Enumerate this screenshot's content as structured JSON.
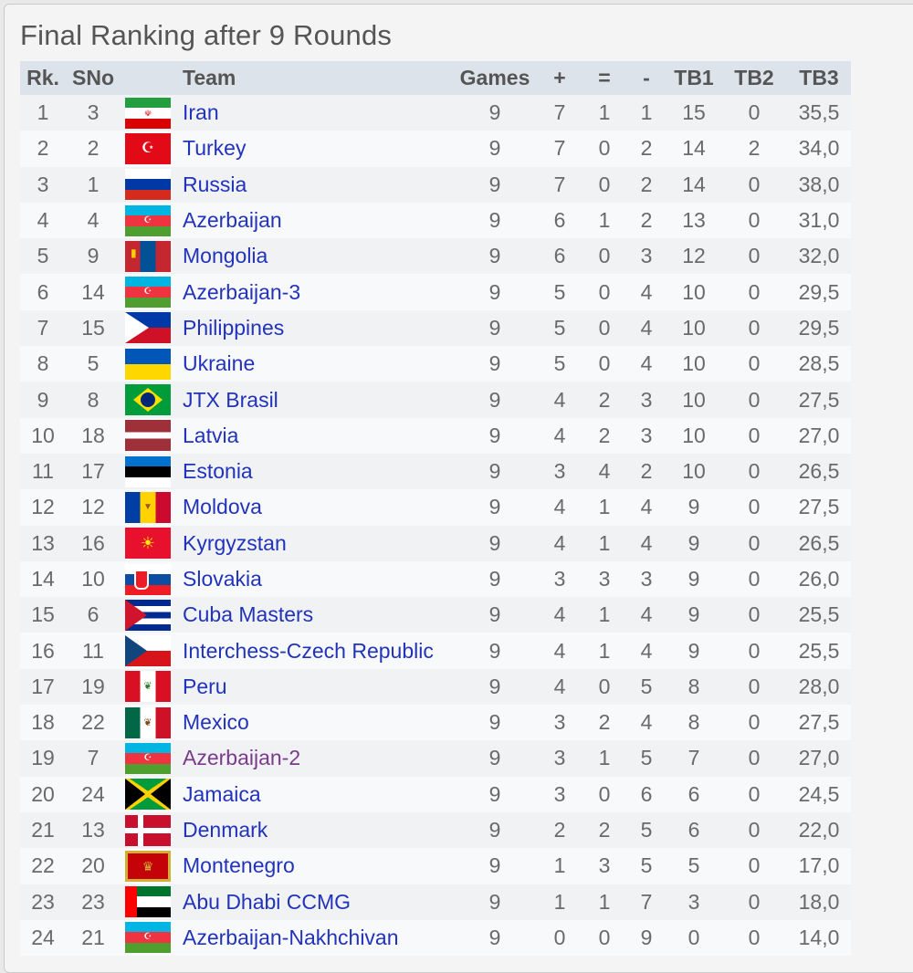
{
  "title": "Final Ranking after 9 Rounds",
  "headers": {
    "rk": "Rk.",
    "sno": "SNo",
    "flag": "",
    "team": "Team",
    "games": "Games",
    "plus": "+",
    "eq": "=",
    "minus": "-",
    "tb1": "TB1",
    "tb2": "TB2",
    "tb3": "TB3"
  },
  "rows": [
    {
      "rk": "1",
      "sno": "3",
      "team": "Iran",
      "games": "9",
      "plus": "7",
      "eq": "1",
      "minus": "1",
      "tb1": "15",
      "tb2": "0",
      "tb3": "35,5",
      "flag": "iran-flag"
    },
    {
      "rk": "2",
      "sno": "2",
      "team": "Turkey",
      "games": "9",
      "plus": "7",
      "eq": "0",
      "minus": "2",
      "tb1": "14",
      "tb2": "2",
      "tb3": "34,0",
      "flag": "turkey-flag"
    },
    {
      "rk": "3",
      "sno": "1",
      "team": "Russia",
      "games": "9",
      "plus": "7",
      "eq": "0",
      "minus": "2",
      "tb1": "14",
      "tb2": "0",
      "tb3": "38,0",
      "flag": "russia-flag"
    },
    {
      "rk": "4",
      "sno": "4",
      "team": "Azerbaijan",
      "games": "9",
      "plus": "6",
      "eq": "1",
      "minus": "2",
      "tb1": "13",
      "tb2": "0",
      "tb3": "31,0",
      "flag": "azerbaijan-flag"
    },
    {
      "rk": "5",
      "sno": "9",
      "team": "Mongolia",
      "games": "9",
      "plus": "6",
      "eq": "0",
      "minus": "3",
      "tb1": "12",
      "tb2": "0",
      "tb3": "32,0",
      "flag": "mongolia-flag"
    },
    {
      "rk": "6",
      "sno": "14",
      "team": "Azerbaijan-3",
      "games": "9",
      "plus": "5",
      "eq": "0",
      "minus": "4",
      "tb1": "10",
      "tb2": "0",
      "tb3": "29,5",
      "flag": "azerbaijan-flag"
    },
    {
      "rk": "7",
      "sno": "15",
      "team": "Philippines",
      "games": "9",
      "plus": "5",
      "eq": "0",
      "minus": "4",
      "tb1": "10",
      "tb2": "0",
      "tb3": "29,5",
      "flag": "philippines-flag"
    },
    {
      "rk": "8",
      "sno": "5",
      "team": "Ukraine",
      "games": "9",
      "plus": "5",
      "eq": "0",
      "minus": "4",
      "tb1": "10",
      "tb2": "0",
      "tb3": "28,5",
      "flag": "ukraine-flag"
    },
    {
      "rk": "9",
      "sno": "8",
      "team": "JTX Brasil",
      "games": "9",
      "plus": "4",
      "eq": "2",
      "minus": "3",
      "tb1": "10",
      "tb2": "0",
      "tb3": "27,5",
      "flag": "brazil-flag"
    },
    {
      "rk": "10",
      "sno": "18",
      "team": "Latvia",
      "games": "9",
      "plus": "4",
      "eq": "2",
      "minus": "3",
      "tb1": "10",
      "tb2": "0",
      "tb3": "27,0",
      "flag": "latvia-flag"
    },
    {
      "rk": "11",
      "sno": "17",
      "team": "Estonia",
      "games": "9",
      "plus": "3",
      "eq": "4",
      "minus": "2",
      "tb1": "10",
      "tb2": "0",
      "tb3": "26,5",
      "flag": "estonia-flag"
    },
    {
      "rk": "12",
      "sno": "12",
      "team": "Moldova",
      "games": "9",
      "plus": "4",
      "eq": "1",
      "minus": "4",
      "tb1": "9",
      "tb2": "0",
      "tb3": "27,5",
      "flag": "moldova-flag"
    },
    {
      "rk": "13",
      "sno": "16",
      "team": "Kyrgyzstan",
      "games": "9",
      "plus": "4",
      "eq": "1",
      "minus": "4",
      "tb1": "9",
      "tb2": "0",
      "tb3": "26,5",
      "flag": "kyrgyzstan-flag"
    },
    {
      "rk": "14",
      "sno": "10",
      "team": "Slovakia",
      "games": "9",
      "plus": "3",
      "eq": "3",
      "minus": "3",
      "tb1": "9",
      "tb2": "0",
      "tb3": "26,0",
      "flag": "slovakia-flag"
    },
    {
      "rk": "15",
      "sno": "6",
      "team": "Cuba Masters",
      "games": "9",
      "plus": "4",
      "eq": "1",
      "minus": "4",
      "tb1": "9",
      "tb2": "0",
      "tb3": "25,5",
      "flag": "cuba-flag"
    },
    {
      "rk": "16",
      "sno": "11",
      "team": "Interchess-Czech Republic",
      "games": "9",
      "plus": "4",
      "eq": "1",
      "minus": "4",
      "tb1": "9",
      "tb2": "0",
      "tb3": "25,5",
      "flag": "czech-flag"
    },
    {
      "rk": "17",
      "sno": "19",
      "team": "Peru",
      "games": "9",
      "plus": "4",
      "eq": "0",
      "minus": "5",
      "tb1": "8",
      "tb2": "0",
      "tb3": "28,0",
      "flag": "peru-flag"
    },
    {
      "rk": "18",
      "sno": "22",
      "team": "Mexico",
      "games": "9",
      "plus": "3",
      "eq": "2",
      "minus": "4",
      "tb1": "8",
      "tb2": "0",
      "tb3": "27,5",
      "flag": "mexico-flag"
    },
    {
      "rk": "19",
      "sno": "7",
      "team": "Azerbaijan-2",
      "games": "9",
      "plus": "3",
      "eq": "1",
      "minus": "5",
      "tb1": "7",
      "tb2": "0",
      "tb3": "27,0",
      "flag": "azerbaijan-flag",
      "visited": true
    },
    {
      "rk": "20",
      "sno": "24",
      "team": "Jamaica",
      "games": "9",
      "plus": "3",
      "eq": "0",
      "minus": "6",
      "tb1": "6",
      "tb2": "0",
      "tb3": "24,5",
      "flag": "jamaica-flag"
    },
    {
      "rk": "21",
      "sno": "13",
      "team": "Denmark",
      "games": "9",
      "plus": "2",
      "eq": "2",
      "minus": "5",
      "tb1": "6",
      "tb2": "0",
      "tb3": "22,0",
      "flag": "denmark-flag"
    },
    {
      "rk": "22",
      "sno": "20",
      "team": "Montenegro",
      "games": "9",
      "plus": "1",
      "eq": "3",
      "minus": "5",
      "tb1": "5",
      "tb2": "0",
      "tb3": "17,0",
      "flag": "montenegro-flag"
    },
    {
      "rk": "23",
      "sno": "23",
      "team": "Abu Dhabi CCMG",
      "games": "9",
      "plus": "1",
      "eq": "1",
      "minus": "7",
      "tb1": "3",
      "tb2": "0",
      "tb3": "18,0",
      "flag": "uae-flag"
    },
    {
      "rk": "24",
      "sno": "21",
      "team": "Azerbaijan-Nakhchivan",
      "games": "9",
      "plus": "0",
      "eq": "0",
      "minus": "9",
      "tb1": "0",
      "tb2": "0",
      "tb3": "14,0",
      "flag": "azerbaijan-flag"
    }
  ],
  "colors": {
    "link": "#2233bb",
    "visited_link": "#7a3b8c",
    "header_bg": "#dde3ea"
  }
}
